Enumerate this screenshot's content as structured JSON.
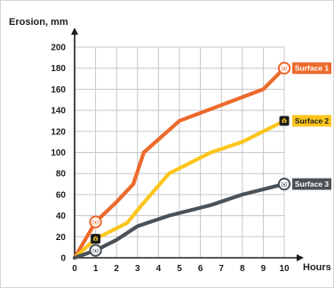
{
  "chart_data": {
    "type": "line",
    "title": "",
    "ylabel": "Erosion, mm",
    "xlabel": "Hours",
    "xlim": [
      0,
      10
    ],
    "ylim": [
      0,
      200
    ],
    "xticks": [
      0,
      1,
      2,
      3,
      4,
      5,
      6,
      7,
      8,
      9,
      10
    ],
    "yticks": [
      0,
      20,
      40,
      60,
      80,
      100,
      120,
      140,
      160,
      180,
      200
    ],
    "grid": true,
    "legend": "labels at line ends (right)",
    "series": [
      {
        "name": "Surface 1",
        "color": "#ec6a2c",
        "label_text_color": "#ffffff",
        "points": [
          [
            0,
            0
          ],
          [
            1,
            34
          ],
          [
            2,
            53
          ],
          [
            2.8,
            70
          ],
          [
            3.3,
            100
          ],
          [
            5,
            130
          ],
          [
            7,
            145
          ],
          [
            9,
            160
          ],
          [
            10,
            180
          ]
        ],
        "markers": [
          [
            1,
            34
          ],
          [
            10,
            180
          ]
        ],
        "marker_icon": "camera-icon"
      },
      {
        "name": "Surface 2",
        "color": "#fcc51d",
        "label_text_color": "#1c1c1c",
        "points": [
          [
            0,
            0
          ],
          [
            1,
            18
          ],
          [
            2.5,
            33
          ],
          [
            3.2,
            50
          ],
          [
            4.5,
            80
          ],
          [
            6.5,
            100
          ],
          [
            8,
            110
          ],
          [
            10,
            130
          ]
        ],
        "markers": [
          [
            1,
            18
          ],
          [
            10,
            130
          ]
        ],
        "marker_icon": "camera-icon"
      },
      {
        "name": "Surface 3",
        "color": "#4b5257",
        "label_text_color": "#ffffff",
        "points": [
          [
            0,
            0
          ],
          [
            1,
            7
          ],
          [
            2,
            17
          ],
          [
            3,
            30
          ],
          [
            4.5,
            40
          ],
          [
            6.5,
            50
          ],
          [
            8,
            60
          ],
          [
            10,
            70
          ]
        ],
        "markers": [
          [
            1,
            7
          ],
          [
            10,
            70
          ]
        ],
        "marker_icon": "camera-icon"
      }
    ]
  }
}
